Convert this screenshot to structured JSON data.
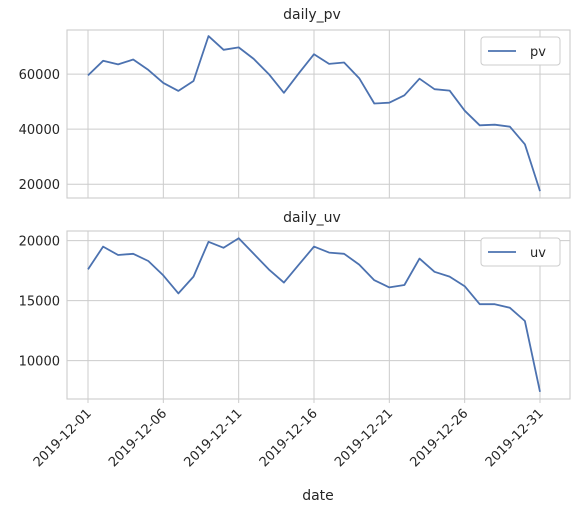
{
  "chart_data": [
    {
      "type": "line",
      "title": "daily_pv",
      "xlabel": "",
      "ylabel": "",
      "x": [
        "2019-12-01",
        "2019-12-02",
        "2019-12-03",
        "2019-12-04",
        "2019-12-05",
        "2019-12-06",
        "2019-12-07",
        "2019-12-08",
        "2019-12-09",
        "2019-12-10",
        "2019-12-11",
        "2019-12-12",
        "2019-12-13",
        "2019-12-14",
        "2019-12-15",
        "2019-12-16",
        "2019-12-17",
        "2019-12-18",
        "2019-12-19",
        "2019-12-20",
        "2019-12-21",
        "2019-12-22",
        "2019-12-23",
        "2019-12-24",
        "2019-12-25",
        "2019-12-26",
        "2019-12-27",
        "2019-12-28",
        "2019-12-29",
        "2019-12-30",
        "2019-12-31"
      ],
      "series": [
        {
          "name": "pv",
          "color": "#4c72b0",
          "values": [
            59500,
            64800,
            63500,
            65300,
            61500,
            56800,
            53900,
            57500,
            73800,
            68800,
            69700,
            65500,
            60000,
            53200,
            60300,
            67200,
            63700,
            64200,
            58500,
            49300,
            49600,
            52300,
            58300,
            54500,
            54000,
            46700,
            41400,
            41600,
            40900,
            34500,
            17500
          ]
        }
      ],
      "yticks": [
        20000,
        40000,
        60000
      ],
      "ylim": [
        15000,
        76000
      ],
      "legend": "upper right",
      "grid": true
    },
    {
      "type": "line",
      "title": "daily_uv",
      "xlabel": "date",
      "ylabel": "",
      "x": [
        "2019-12-01",
        "2019-12-02",
        "2019-12-03",
        "2019-12-04",
        "2019-12-05",
        "2019-12-06",
        "2019-12-07",
        "2019-12-08",
        "2019-12-09",
        "2019-12-10",
        "2019-12-11",
        "2019-12-12",
        "2019-12-13",
        "2019-12-14",
        "2019-12-15",
        "2019-12-16",
        "2019-12-17",
        "2019-12-18",
        "2019-12-19",
        "2019-12-20",
        "2019-12-21",
        "2019-12-22",
        "2019-12-23",
        "2019-12-24",
        "2019-12-25",
        "2019-12-26",
        "2019-12-27",
        "2019-12-28",
        "2019-12-29",
        "2019-12-30",
        "2019-12-31"
      ],
      "series": [
        {
          "name": "uv",
          "color": "#4c72b0",
          "values": [
            17600,
            19500,
            18800,
            18900,
            18300,
            17100,
            15600,
            17000,
            19900,
            19400,
            20200,
            18900,
            17600,
            16500,
            18000,
            19500,
            19000,
            18900,
            18000,
            16700,
            16100,
            16300,
            18500,
            17400,
            17000,
            16200,
            14700,
            14700,
            14400,
            13300,
            7400
          ]
        }
      ],
      "yticks": [
        10000,
        15000,
        20000
      ],
      "ylim": [
        6800,
        20800
      ],
      "legend": "upper right",
      "grid": true
    }
  ],
  "xticks": [
    "2019-12-01",
    "2019-12-06",
    "2019-12-11",
    "2019-12-16",
    "2019-12-21",
    "2019-12-26",
    "2019-12-31"
  ]
}
